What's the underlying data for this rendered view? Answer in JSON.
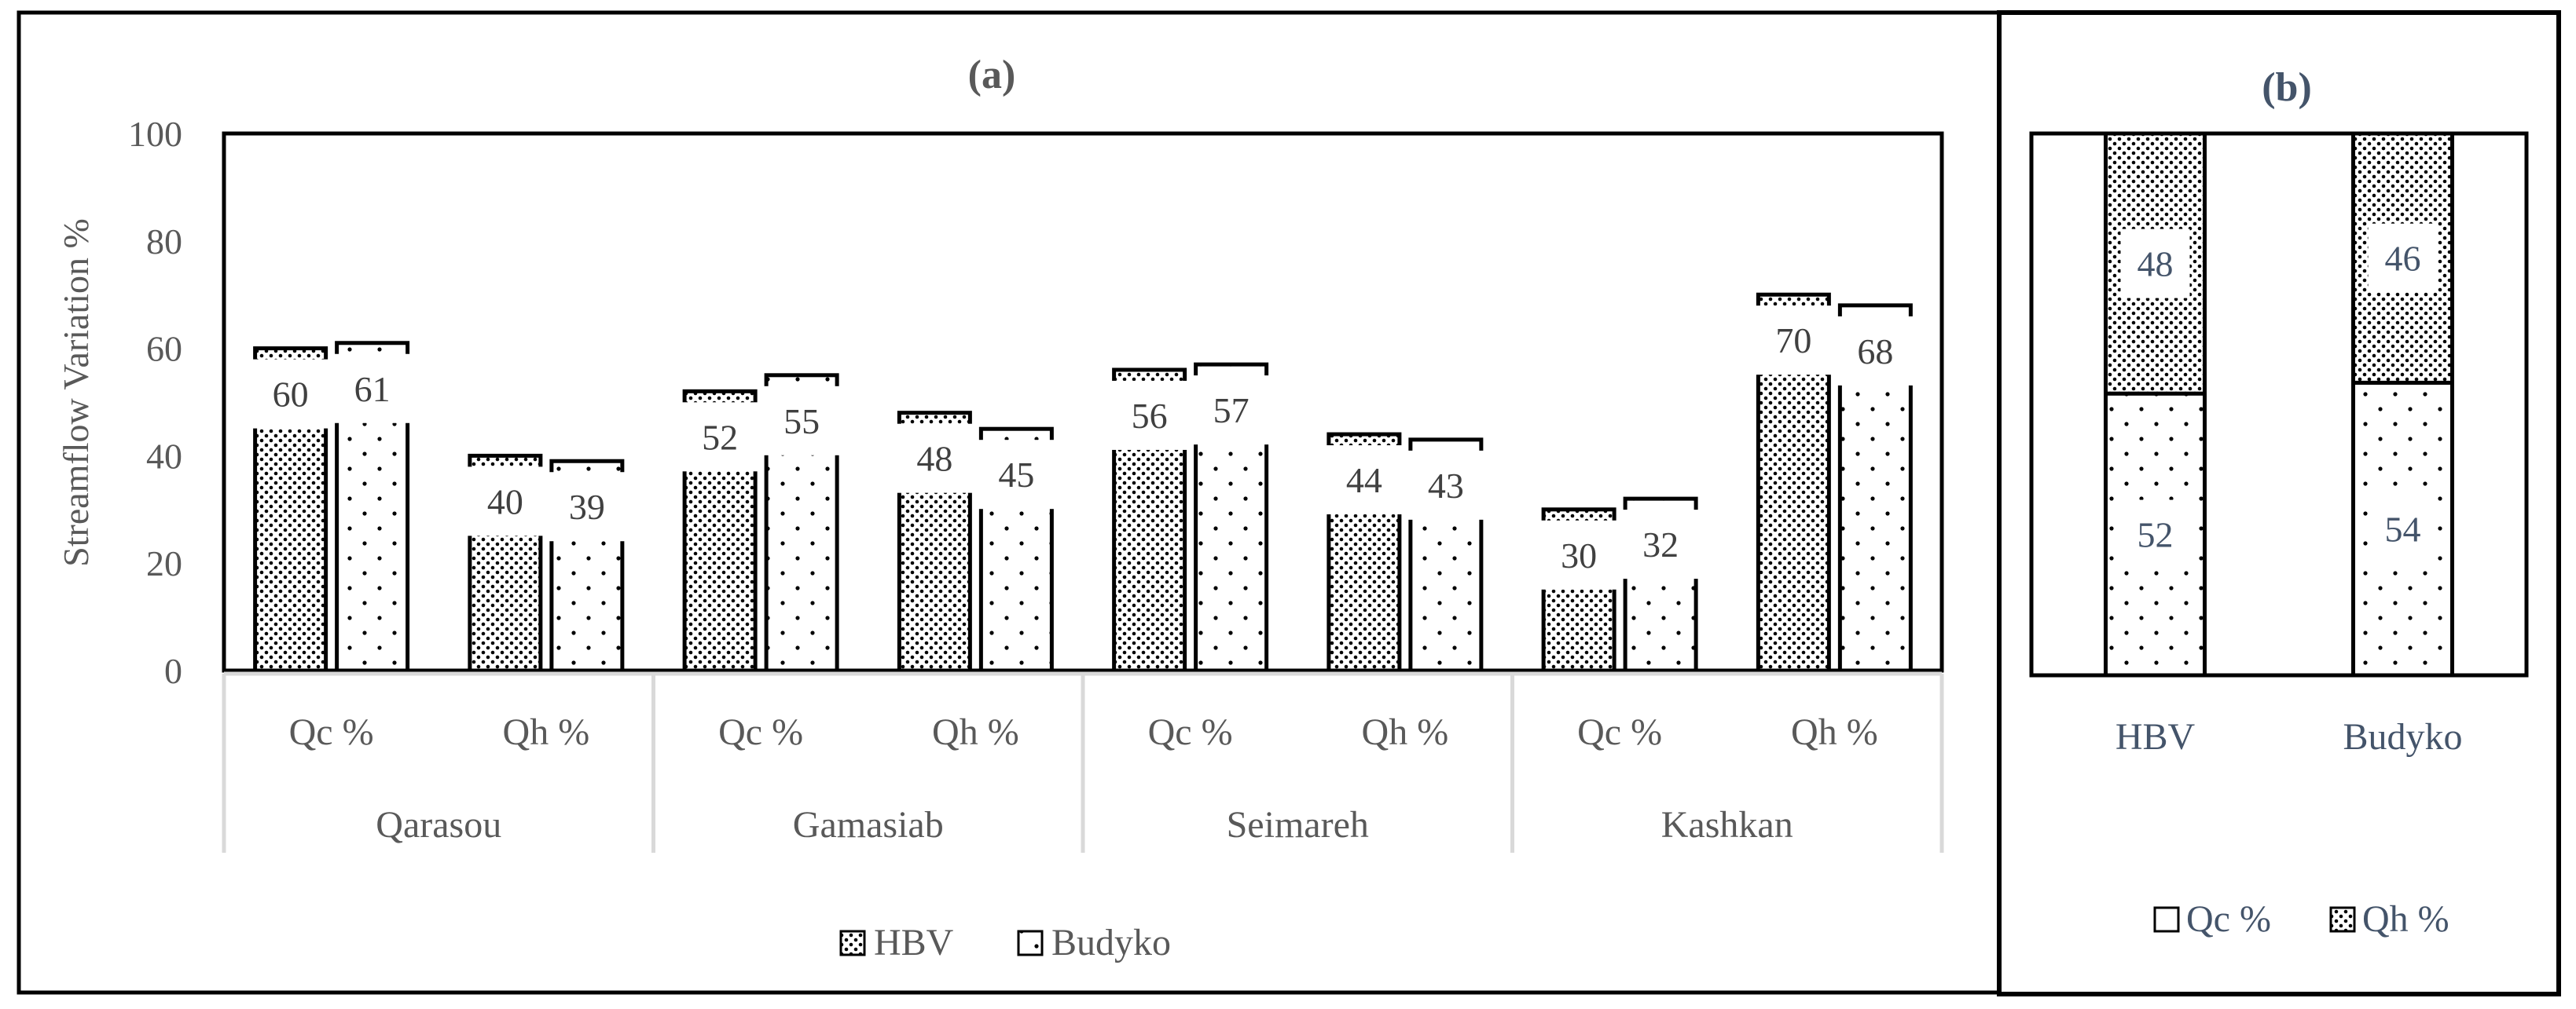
{
  "chart_data": [
    {
      "type": "bar",
      "title": "(a)",
      "ylabel": "Streamflow Variation %",
      "xlabel": "",
      "ylim": [
        0,
        100
      ],
      "yticks": [
        "0",
        "20",
        "40",
        "60",
        "80",
        "100"
      ],
      "groups": [
        "Qarasou",
        "Gamasiab",
        "Seimareh",
        "Kashkan"
      ],
      "categories": [
        "Qc %",
        "Qh %",
        "Qc %",
        "Qh %",
        "Qc %",
        "Qh %",
        "Qc %",
        "Qh %"
      ],
      "series": [
        {
          "name": "HBV",
          "values": [
            60,
            40,
            52,
            48,
            56,
            44,
            30,
            70
          ]
        },
        {
          "name": "Budyko",
          "values": [
            61,
            39,
            55,
            45,
            57,
            43,
            32,
            68
          ]
        }
      ],
      "legend": "bottom"
    },
    {
      "type": "bar",
      "stacked": true,
      "title": "(b)",
      "categories": [
        "HBV",
        "Budyko"
      ],
      "series": [
        {
          "name": "Qc %",
          "values": [
            52,
            54
          ]
        },
        {
          "name": "Qh %",
          "values": [
            48,
            46
          ]
        }
      ],
      "legend": "bottom"
    }
  ],
  "colors": {
    "axis": "#595959",
    "border": "#000000",
    "grid": "#D9D9D9",
    "label_b": "#44546A"
  }
}
